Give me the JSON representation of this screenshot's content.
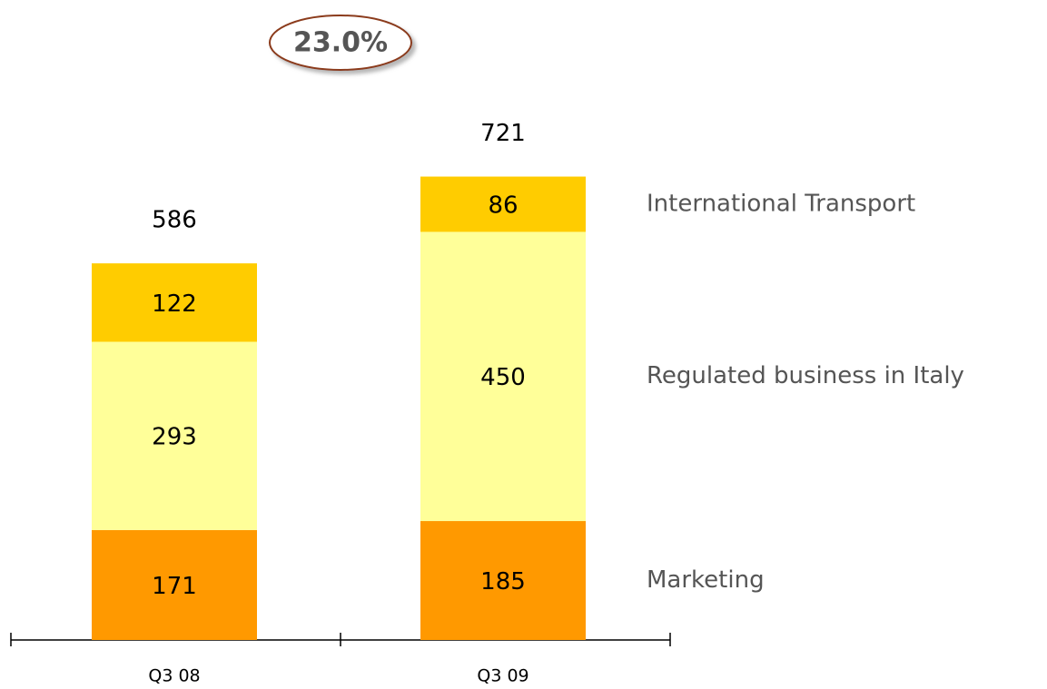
{
  "chart_data": {
    "type": "stacked_bar",
    "categories": [
      "Q3 08",
      "Q3 09"
    ],
    "series": [
      {
        "name": "Marketing",
        "color": "#ff9900",
        "values": [
          171,
          185
        ]
      },
      {
        "name": "Regulated business in Italy",
        "color": "#ffff99",
        "values": [
          293,
          450
        ]
      },
      {
        "name": "International Transport",
        "color": "#ffcc00",
        "values": [
          122,
          86
        ]
      }
    ],
    "totals": [
      586,
      721
    ],
    "annotation": "23.0%"
  }
}
